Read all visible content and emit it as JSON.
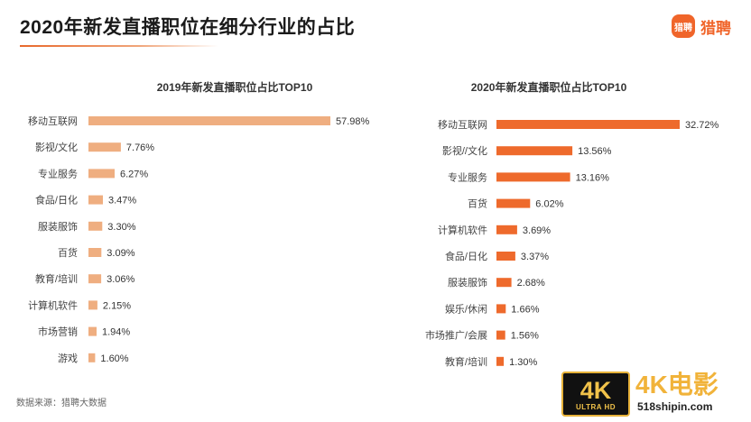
{
  "header": {
    "title": "2020年新发直播职位在细分行业的占比",
    "brand_icon_text": "猎聘",
    "brand_name": "猎聘"
  },
  "source": "数据来源：猎聘大数据",
  "watermark": {
    "badge_big": "4K",
    "badge_small": "ULTRA HD",
    "text": "4K电影",
    "url": "518shipin.com"
  },
  "colors": {
    "accent": "#f0652a",
    "bar_2019": "#efae80",
    "bar_2020": "#ee6a2c"
  },
  "chart_data": [
    {
      "type": "bar",
      "orientation": "horizontal",
      "title": "2019年新发直播职位占比TOP10",
      "categories": [
        "移动互联网",
        "影视/文化",
        "专业服务",
        "食品/日化",
        "服装服饰",
        "百货",
        "教育/培训",
        "计算机软件",
        "市场营销",
        "游戏"
      ],
      "values": [
        57.98,
        7.76,
        6.27,
        3.47,
        3.3,
        3.09,
        3.06,
        2.15,
        1.94,
        1.6
      ],
      "labels": [
        "57.98%",
        "7.76%",
        "6.27%",
        "3.47%",
        "3.30%",
        "3.09%",
        "3.06%",
        "2.15%",
        "1.94%",
        "1.60%"
      ],
      "unit": "%"
    },
    {
      "type": "bar",
      "orientation": "horizontal",
      "title": "2020年新发直播职位占比TOP10",
      "categories": [
        "移动互联网",
        "影视//文化",
        "专业服务",
        "百货",
        "计算机软件",
        "食品/日化",
        "服装服饰",
        "娱乐/休闲",
        "市场推广/会展",
        "教育/培训"
      ],
      "values": [
        32.72,
        13.56,
        13.16,
        6.02,
        3.69,
        3.37,
        2.68,
        1.66,
        1.56,
        1.3
      ],
      "labels": [
        "32.72%",
        "13.56%",
        "13.16%",
        "6.02%",
        "3.69%",
        "3.37%",
        "2.68%",
        "1.66%",
        "1.56%",
        "1.30%"
      ],
      "unit": "%"
    }
  ]
}
